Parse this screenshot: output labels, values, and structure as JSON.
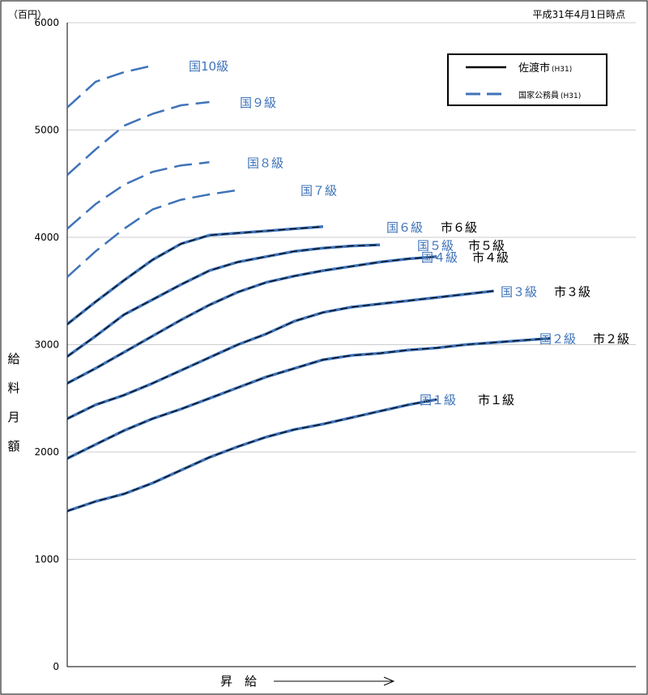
{
  "chart_data": {
    "type": "line",
    "note": "平成31年4月1日時点",
    "unit_label": "（百円）",
    "ylabel": "給料月額",
    "xlabel": "昇　給",
    "ylim": [
      0,
      6000
    ],
    "yticks": [
      "0",
      "1000",
      "2000",
      "3000",
      "4000",
      "5000",
      "6000"
    ],
    "grid": true,
    "legend": {
      "placement": "top-right",
      "items": [
        {
          "label": "佐渡市",
          "small": "(H31)",
          "style": "solid"
        },
        {
          "label": "国家公務員",
          "small": "(H31)",
          "style": "dashed"
        }
      ]
    },
    "colors": {
      "kuni": "#3f73b8",
      "shi": "#000000",
      "grid": "#cccccc"
    },
    "series": [
      {
        "name": "国１級",
        "style": "combined",
        "label_kuni": "国１級",
        "label_shi": "市１級",
        "points": [
          [
            0,
            1450
          ],
          [
            0.05,
            1540
          ],
          [
            0.1,
            1610
          ],
          [
            0.15,
            1710
          ],
          [
            0.2,
            1830
          ],
          [
            0.25,
            1950
          ],
          [
            0.3,
            2050
          ],
          [
            0.35,
            2140
          ],
          [
            0.4,
            2210
          ],
          [
            0.45,
            2260
          ],
          [
            0.5,
            2320
          ],
          [
            0.55,
            2380
          ],
          [
            0.6,
            2440
          ],
          [
            0.65,
            2490
          ]
        ]
      },
      {
        "name": "国２級",
        "style": "combined",
        "label_kuni": "国２級",
        "label_shi": "市２級",
        "points": [
          [
            0,
            1940
          ],
          [
            0.05,
            2070
          ],
          [
            0.1,
            2200
          ],
          [
            0.15,
            2310
          ],
          [
            0.2,
            2400
          ],
          [
            0.25,
            2500
          ],
          [
            0.3,
            2600
          ],
          [
            0.35,
            2700
          ],
          [
            0.4,
            2780
          ],
          [
            0.45,
            2860
          ],
          [
            0.5,
            2900
          ],
          [
            0.55,
            2920
          ],
          [
            0.6,
            2950
          ],
          [
            0.65,
            2970
          ],
          [
            0.7,
            3000
          ],
          [
            0.75,
            3020
          ],
          [
            0.8,
            3040
          ],
          [
            0.85,
            3060
          ]
        ]
      },
      {
        "name": "国３級",
        "style": "combined",
        "label_kuni": "国３級",
        "label_shi": "市３級",
        "points": [
          [
            0,
            2310
          ],
          [
            0.05,
            2440
          ],
          [
            0.1,
            2530
          ],
          [
            0.15,
            2640
          ],
          [
            0.2,
            2760
          ],
          [
            0.25,
            2880
          ],
          [
            0.3,
            3000
          ],
          [
            0.35,
            3100
          ],
          [
            0.4,
            3220
          ],
          [
            0.45,
            3300
          ],
          [
            0.5,
            3350
          ],
          [
            0.55,
            3380
          ],
          [
            0.6,
            3410
          ],
          [
            0.65,
            3440
          ],
          [
            0.7,
            3470
          ],
          [
            0.75,
            3500
          ]
        ]
      },
      {
        "name": "国４級",
        "style": "combined",
        "label_kuni": "国４級",
        "label_shi": "市４級",
        "points": [
          [
            0,
            2640
          ],
          [
            0.05,
            2780
          ],
          [
            0.1,
            2930
          ],
          [
            0.15,
            3080
          ],
          [
            0.2,
            3230
          ],
          [
            0.25,
            3370
          ],
          [
            0.3,
            3490
          ],
          [
            0.35,
            3580
          ],
          [
            0.4,
            3640
          ],
          [
            0.45,
            3690
          ],
          [
            0.5,
            3730
          ],
          [
            0.55,
            3770
          ],
          [
            0.6,
            3800
          ],
          [
            0.65,
            3820
          ]
        ]
      },
      {
        "name": "国５級",
        "style": "combined",
        "label_kuni": "国５級",
        "label_shi": "市５級",
        "points": [
          [
            0,
            2890
          ],
          [
            0.05,
            3080
          ],
          [
            0.1,
            3280
          ],
          [
            0.15,
            3420
          ],
          [
            0.2,
            3560
          ],
          [
            0.25,
            3690
          ],
          [
            0.3,
            3770
          ],
          [
            0.35,
            3820
          ],
          [
            0.4,
            3870
          ],
          [
            0.45,
            3900
          ],
          [
            0.5,
            3920
          ],
          [
            0.55,
            3930
          ]
        ]
      },
      {
        "name": "国６級",
        "style": "combined",
        "label_kuni": "国６級",
        "label_shi": "市６級",
        "points": [
          [
            0,
            3190
          ],
          [
            0.05,
            3400
          ],
          [
            0.1,
            3600
          ],
          [
            0.15,
            3790
          ],
          [
            0.2,
            3940
          ],
          [
            0.25,
            4020
          ],
          [
            0.3,
            4040
          ],
          [
            0.35,
            4060
          ],
          [
            0.4,
            4080
          ],
          [
            0.45,
            4100
          ]
        ]
      },
      {
        "name": "国７級",
        "style": "dashed",
        "label_kuni": "国７級",
        "points": [
          [
            0,
            3630
          ],
          [
            0.05,
            3870
          ],
          [
            0.1,
            4080
          ],
          [
            0.15,
            4260
          ],
          [
            0.2,
            4350
          ],
          [
            0.25,
            4400
          ],
          [
            0.3,
            4440
          ]
        ]
      },
      {
        "name": "国８級",
        "style": "dashed",
        "label_kuni": "国８級",
        "points": [
          [
            0,
            4080
          ],
          [
            0.05,
            4310
          ],
          [
            0.1,
            4490
          ],
          [
            0.15,
            4610
          ],
          [
            0.2,
            4670
          ],
          [
            0.25,
            4700
          ]
        ]
      },
      {
        "name": "国９級",
        "style": "dashed",
        "label_kuni": "国９級",
        "points": [
          [
            0,
            4580
          ],
          [
            0.05,
            4820
          ],
          [
            0.1,
            5040
          ],
          [
            0.15,
            5150
          ],
          [
            0.2,
            5230
          ],
          [
            0.25,
            5260
          ]
        ]
      },
      {
        "name": "国10級",
        "style": "dashed",
        "label_kuni": "国10級",
        "points": [
          [
            0,
            5210
          ],
          [
            0.05,
            5450
          ],
          [
            0.1,
            5540
          ],
          [
            0.15,
            5600
          ]
        ]
      }
    ]
  }
}
